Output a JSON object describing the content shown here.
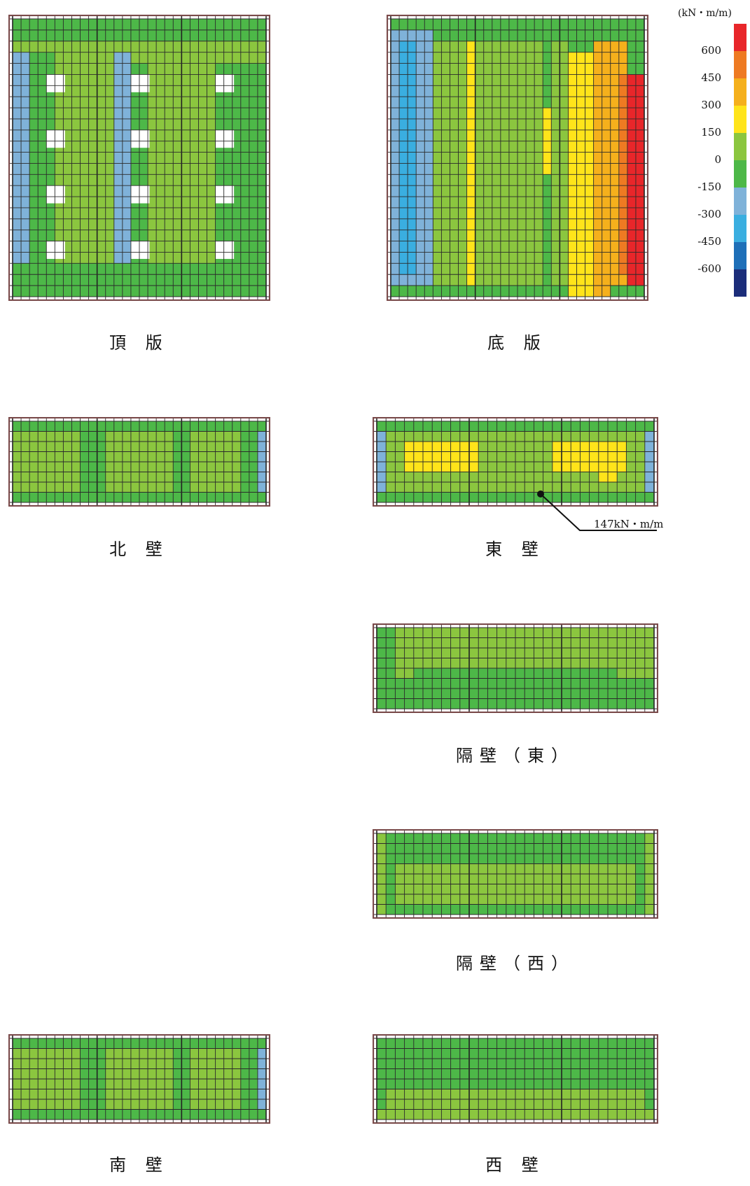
{
  "legend": {
    "unit": "(kN・m/m)",
    "ticks": [
      "600",
      "450",
      "300",
      "150",
      "0",
      "-150",
      "-300",
      "-450",
      "-600"
    ],
    "colors": [
      "#e8262a",
      "#ee7a22",
      "#f5b01c",
      "#ffe41a",
      "#8bc63f",
      "#4db848",
      "#7fb2d9",
      "#3aaee0",
      "#1e6fb8",
      "#1b2d7a"
    ]
  },
  "panels": {
    "top_slab": {
      "caption": "頂 版",
      "base_color": "#8bc63f",
      "regions": [
        {
          "c0": 0,
          "c1": 2,
          "r0": 3,
          "r1": 22,
          "color": "#7fb2d9"
        },
        {
          "c0": 2,
          "c1": 5,
          "r0": 3,
          "r1": 22,
          "color": "#4db848"
        },
        {
          "c0": 12,
          "c1": 14,
          "r0": 3,
          "r1": 22,
          "color": "#7fb2d9"
        },
        {
          "c0": 14,
          "c1": 16,
          "r0": 4,
          "r1": 22,
          "color": "#4db848"
        },
        {
          "c0": 24,
          "c1": 30,
          "r0": 4,
          "r1": 22,
          "color": "#4db848"
        },
        {
          "c0": 0,
          "c1": 30,
          "r0": 0,
          "r1": 2,
          "color": "#4db848"
        },
        {
          "c0": 0,
          "c1": 30,
          "r0": 22,
          "r1": 25,
          "color": "#4db848"
        }
      ],
      "openings": [
        {
          "c": 4,
          "r": 5
        },
        {
          "c": 14,
          "r": 5
        },
        {
          "c": 24,
          "r": 5
        },
        {
          "c": 4,
          "r": 10
        },
        {
          "c": 14,
          "r": 10
        },
        {
          "c": 24,
          "r": 10
        },
        {
          "c": 4,
          "r": 15
        },
        {
          "c": 14,
          "r": 15
        },
        {
          "c": 24,
          "r": 15
        },
        {
          "c": 4,
          "r": 20
        },
        {
          "c": 14,
          "r": 20
        },
        {
          "c": 24,
          "r": 20
        }
      ]
    },
    "bottom_slab": {
      "caption": "底 版",
      "base_color": "#4db848",
      "regions": [
        {
          "c0": 0,
          "c1": 5,
          "r0": 1,
          "r1": 24,
          "color": "#7fb2d9"
        },
        {
          "c0": 1,
          "c1": 3,
          "r0": 2,
          "r1": 23,
          "color": "#3aaee0"
        },
        {
          "c0": 5,
          "c1": 9,
          "r0": 2,
          "r1": 24,
          "color": "#8bc63f"
        },
        {
          "c0": 9,
          "c1": 10,
          "r0": 2,
          "r1": 24,
          "color": "#ffe41a"
        },
        {
          "c0": 10,
          "c1": 18,
          "r0": 2,
          "r1": 24,
          "color": "#8bc63f"
        },
        {
          "c0": 18,
          "c1": 19,
          "r0": 8,
          "r1": 14,
          "color": "#ffe41a"
        },
        {
          "c0": 19,
          "c1": 21,
          "r0": 2,
          "r1": 24,
          "color": "#8bc63f"
        },
        {
          "c0": 21,
          "c1": 24,
          "r0": 3,
          "r1": 25,
          "color": "#ffe41a"
        },
        {
          "c0": 24,
          "c1": 26,
          "r0": 2,
          "r1": 25,
          "color": "#f5b01c"
        },
        {
          "c0": 26,
          "c1": 28,
          "r0": 2,
          "r1": 24,
          "color": "#f5b01c"
        },
        {
          "c0": 27,
          "c1": 28,
          "r0": 5,
          "r1": 23,
          "color": "#ee7a22"
        },
        {
          "c0": 28,
          "c1": 30,
          "r0": 5,
          "r1": 24,
          "color": "#e8262a"
        }
      ]
    },
    "north_wall": {
      "caption": "北 壁",
      "base_color": "#8bc63f",
      "regions": [
        {
          "c0": 0,
          "c1": 30,
          "r0": 0,
          "r1": 1,
          "color": "#4db848"
        },
        {
          "c0": 0,
          "c1": 30,
          "r0": 7,
          "r1": 8,
          "color": "#4db848"
        },
        {
          "c0": 8,
          "c1": 11,
          "r0": 1,
          "r1": 7,
          "color": "#4db848"
        },
        {
          "c0": 19,
          "c1": 21,
          "r0": 1,
          "r1": 7,
          "color": "#4db848"
        },
        {
          "c0": 27,
          "c1": 29,
          "r0": 1,
          "r1": 7,
          "color": "#4db848"
        },
        {
          "c0": 29,
          "c1": 30,
          "r0": 1,
          "r1": 7,
          "color": "#7fb2d9"
        }
      ]
    },
    "east_wall": {
      "caption": "東 壁",
      "base_color": "#8bc63f",
      "regions": [
        {
          "c0": 0,
          "c1": 30,
          "r0": 0,
          "r1": 1,
          "color": "#4db848"
        },
        {
          "c0": 0,
          "c1": 30,
          "r0": 7,
          "r1": 8,
          "color": "#4db848"
        },
        {
          "c0": 0,
          "c1": 1,
          "r0": 1,
          "r1": 7,
          "color": "#7fb2d9"
        },
        {
          "c0": 29,
          "c1": 30,
          "r0": 1,
          "r1": 7,
          "color": "#7fb2d9"
        },
        {
          "c0": 3,
          "c1": 11,
          "r0": 2,
          "r1": 5,
          "color": "#ffe41a"
        },
        {
          "c0": 19,
          "c1": 27,
          "r0": 2,
          "r1": 5,
          "color": "#ffe41a"
        },
        {
          "c0": 24,
          "c1": 26,
          "r0": 5,
          "r1": 6,
          "color": "#ffe41a"
        }
      ],
      "annotation": "147kN・m/m"
    },
    "partition_east": {
      "caption": "隔壁（東）",
      "base_color": "#8bc63f",
      "regions": [
        {
          "c0": 0,
          "c1": 30,
          "r0": 5,
          "r1": 8,
          "color": "#4db848"
        },
        {
          "c0": 4,
          "c1": 26,
          "r0": 4,
          "r1": 5,
          "color": "#4db848"
        },
        {
          "c0": 0,
          "c1": 2,
          "r0": 0,
          "r1": 8,
          "color": "#4db848"
        }
      ]
    },
    "partition_west": {
      "caption": "隔壁（西）",
      "base_color": "#4db848",
      "regions": [
        {
          "c0": 2,
          "c1": 28,
          "r0": 3,
          "r1": 7,
          "color": "#8bc63f"
        },
        {
          "c0": 0,
          "c1": 1,
          "r0": 0,
          "r1": 8,
          "color": "#8bc63f"
        },
        {
          "c0": 29,
          "c1": 30,
          "r0": 0,
          "r1": 8,
          "color": "#8bc63f"
        }
      ]
    },
    "south_wall": {
      "caption": "南 壁",
      "base_color": "#8bc63f",
      "regions": [
        {
          "c0": 0,
          "c1": 30,
          "r0": 0,
          "r1": 1,
          "color": "#4db848"
        },
        {
          "c0": 0,
          "c1": 30,
          "r0": 7,
          "r1": 8,
          "color": "#4db848"
        },
        {
          "c0": 8,
          "c1": 11,
          "r0": 1,
          "r1": 7,
          "color": "#4db848"
        },
        {
          "c0": 19,
          "c1": 21,
          "r0": 1,
          "r1": 7,
          "color": "#4db848"
        },
        {
          "c0": 27,
          "c1": 29,
          "r0": 1,
          "r1": 7,
          "color": "#4db848"
        },
        {
          "c0": 29,
          "c1": 30,
          "r0": 1,
          "r1": 7,
          "color": "#7fb2d9"
        }
      ]
    },
    "west_wall": {
      "caption": "西 壁",
      "base_color": "#4db848",
      "regions": [
        {
          "c0": 1,
          "c1": 29,
          "r0": 5,
          "r1": 8,
          "color": "#8bc63f"
        },
        {
          "c0": 0,
          "c1": 30,
          "r0": 7,
          "r1": 8,
          "color": "#8bc63f"
        }
      ]
    }
  }
}
